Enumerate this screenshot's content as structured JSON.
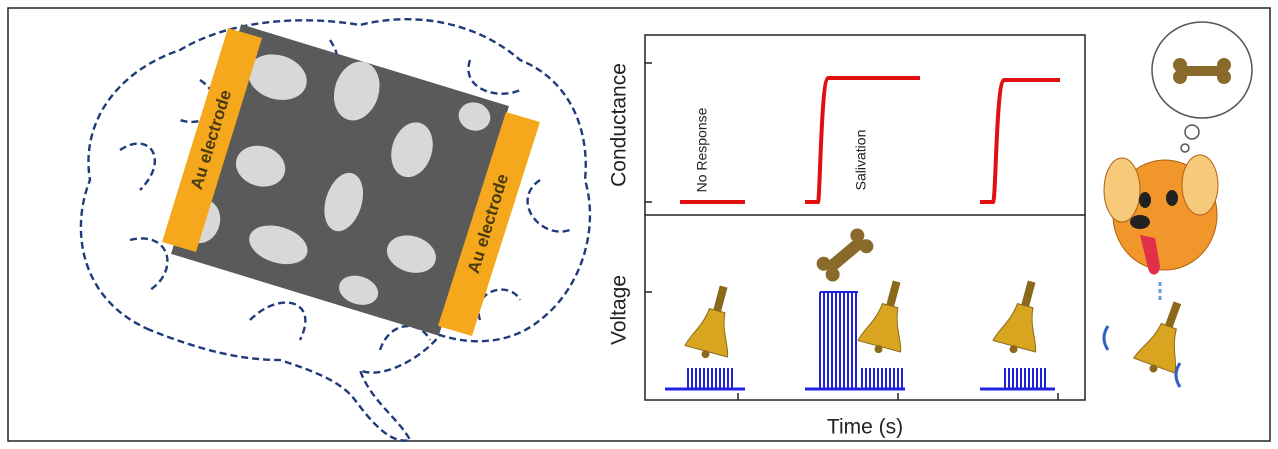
{
  "figure": {
    "electrode_labels": [
      "Au electrode",
      "Au electrode"
    ],
    "plot": {
      "y_labels": [
        "Conductance",
        "Voltage"
      ],
      "annotations": [
        "No Response",
        "Salivation"
      ],
      "x_label": "Time (s)"
    }
  }
}
